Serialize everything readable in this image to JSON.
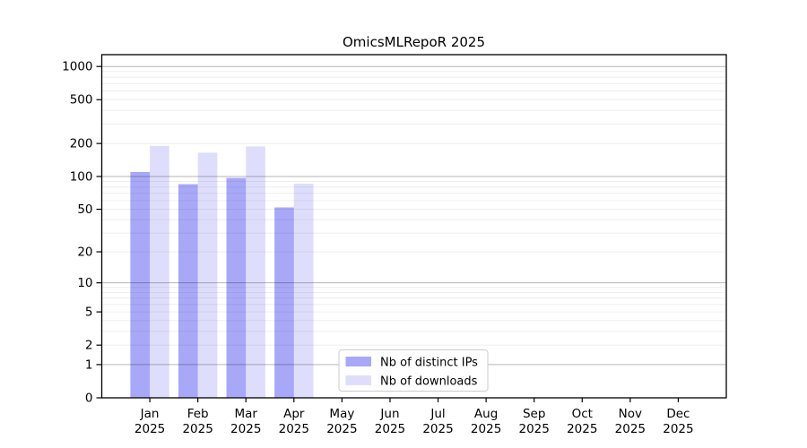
{
  "chart_data": {
    "type": "bar",
    "title": "OmicsMLRepoR 2025",
    "categories": [
      "Jan 2025",
      "Feb 2025",
      "Mar 2025",
      "Apr 2025",
      "May 2025",
      "Jun 2025",
      "Jul 2025",
      "Aug 2025",
      "Sep 2025",
      "Oct 2025",
      "Nov 2025",
      "Dec 2025"
    ],
    "series": [
      {
        "name": "Nb of distinct IPs",
        "color": "#a8a8f8",
        "values": [
          110,
          85,
          97,
          52,
          null,
          null,
          null,
          null,
          null,
          null,
          null,
          null
        ]
      },
      {
        "name": "Nb of downloads",
        "color": "#dedefc",
        "values": [
          190,
          165,
          188,
          86,
          null,
          null,
          null,
          null,
          null,
          null,
          null,
          null
        ]
      }
    ],
    "xlabel": "",
    "ylabel": "",
    "yscale": "log1p",
    "yticks": [
      0,
      1,
      2,
      5,
      10,
      20,
      50,
      100,
      200,
      500,
      1000
    ],
    "ylim": [
      0,
      1280
    ],
    "grid": "on",
    "legend_position": "lower-center-inside"
  },
  "colors": {
    "background": "#ffffff",
    "axis": "#000000",
    "major_grid": "#b6b6b6",
    "minor_grid": "#ececec",
    "legend_border": "#cccccc"
  }
}
